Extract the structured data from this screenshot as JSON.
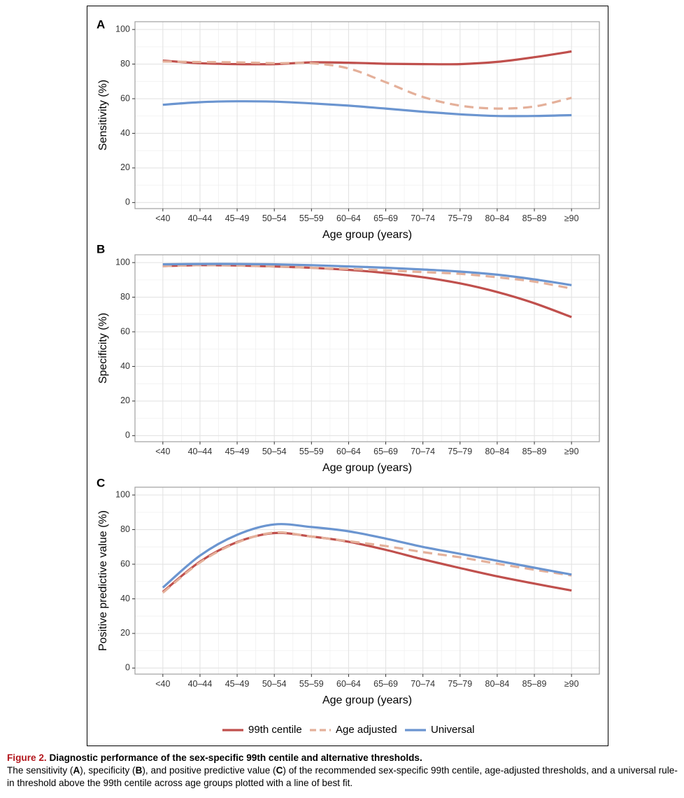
{
  "chart_data": [
    {
      "type": "line",
      "panel_label": "A",
      "xlabel": "Age group (years)",
      "ylabel": "Sensitivity (%)",
      "categories": [
        "<40",
        "40–44",
        "45–49",
        "50–54",
        "55–59",
        "60–64",
        "65–69",
        "70–74",
        "75–79",
        "80–84",
        "85–89",
        "≥90"
      ],
      "ylim": [
        0,
        100
      ],
      "yticks": [
        "0",
        "20",
        "40",
        "60",
        "80",
        "100"
      ],
      "grid": true,
      "series": [
        {
          "name": "99th centile",
          "color": "#c0504d",
          "dash": false,
          "values": [
            82,
            80.5,
            80,
            80,
            81,
            80.8,
            80.2,
            80,
            80,
            81.3,
            84,
            87.3
          ]
        },
        {
          "name": "Age adjusted",
          "color": "#e4b09a",
          "dash": true,
          "values": [
            81.5,
            81.2,
            81,
            80.5,
            80.5,
            77.5,
            69.5,
            61,
            56,
            54.3,
            55.5,
            60.5
          ]
        },
        {
          "name": "Universal",
          "color": "#6b95d0",
          "dash": false,
          "values": [
            56.5,
            58,
            58.5,
            58.3,
            57.3,
            56,
            54.3,
            52.5,
            51,
            50,
            50,
            50.5
          ]
        }
      ]
    },
    {
      "type": "line",
      "panel_label": "B",
      "xlabel": "Age group (years)",
      "ylabel": "Specificity (%)",
      "categories": [
        "<40",
        "40–44",
        "45–49",
        "50–54",
        "55–59",
        "60–64",
        "65–69",
        "70–74",
        "75–79",
        "80–84",
        "85–89",
        "≥90"
      ],
      "ylim": [
        0,
        100
      ],
      "yticks": [
        "0",
        "20",
        "40",
        "60",
        "80",
        "100"
      ],
      "grid": true,
      "series": [
        {
          "name": "99th centile",
          "color": "#c0504d",
          "dash": false,
          "values": [
            98,
            98.5,
            98.3,
            97.8,
            97,
            95.8,
            94,
            91.5,
            88,
            83,
            76.5,
            68.5
          ]
        },
        {
          "name": "Age adjusted",
          "color": "#e4b09a",
          "dash": true,
          "values": [
            98,
            98.5,
            98.3,
            97.8,
            97,
            96.3,
            95.5,
            94.5,
            93.5,
            91.5,
            89,
            85
          ]
        },
        {
          "name": "Universal",
          "color": "#6b95d0",
          "dash": false,
          "values": [
            99,
            99.2,
            99.2,
            99,
            98.5,
            97.8,
            97,
            96,
            94.8,
            93,
            90.3,
            87
          ]
        }
      ]
    },
    {
      "type": "line",
      "panel_label": "C",
      "xlabel": "Age group (years)",
      "ylabel": "Positive predictive value (%)",
      "categories": [
        "<40",
        "40–44",
        "45–49",
        "50–54",
        "55–59",
        "60–64",
        "65–69",
        "70–74",
        "75–79",
        "80–84",
        "85–89",
        "≥90"
      ],
      "ylim": [
        0,
        100
      ],
      "yticks": [
        "0",
        "20",
        "40",
        "60",
        "80",
        "100"
      ],
      "grid": true,
      "series": [
        {
          "name": "99th centile",
          "color": "#c0504d",
          "dash": false,
          "values": [
            44,
            61.5,
            72.8,
            78,
            76,
            73,
            68.3,
            62.8,
            57.8,
            53,
            48.8,
            44.8
          ]
        },
        {
          "name": "Age adjusted",
          "color": "#e4b09a",
          "dash": true,
          "values": [
            43.5,
            61,
            72.5,
            78.3,
            76,
            73.3,
            70.5,
            67,
            64,
            60.3,
            56.8,
            53.5
          ]
        },
        {
          "name": "Universal",
          "color": "#6b95d0",
          "dash": false,
          "values": [
            46.5,
            65,
            77,
            83,
            81.5,
            79,
            74.8,
            70,
            66,
            62,
            58,
            54
          ]
        }
      ]
    }
  ],
  "legend": {
    "position": "bottom",
    "items": [
      {
        "label": "99th centile",
        "color": "#c0504d",
        "dash": false
      },
      {
        "label": "Age adjusted",
        "color": "#e4b09a",
        "dash": true
      },
      {
        "label": "Universal",
        "color": "#6b95d0",
        "dash": false
      }
    ]
  },
  "caption": {
    "figure_label": "Figure 2.",
    "title": "Diagnostic performance of the sex-specific 99th centile and alternative thresholds.",
    "body_parts": [
      "The sensitivity (",
      "A",
      "), specificity (",
      "B",
      "), and positive predictive value (",
      "C",
      ") of the recommended sex-specific 99th centile, age-adjusted thresholds, and a universal rule-in threshold above the 99th centile across age groups plotted with a line of best fit."
    ]
  }
}
